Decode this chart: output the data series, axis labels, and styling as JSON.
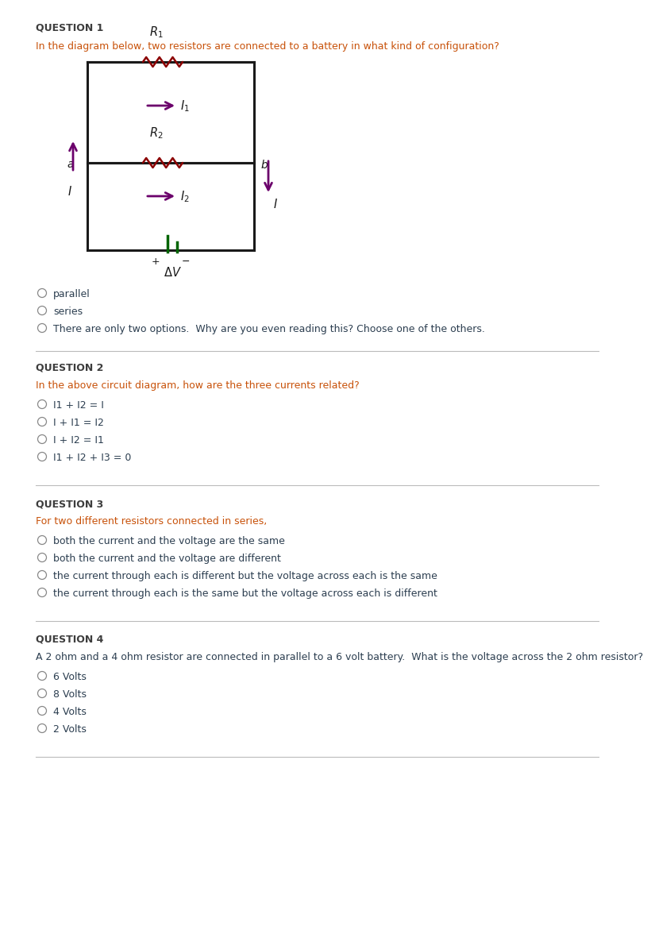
{
  "bg_color": "#ffffff",
  "question_header_color": "#3d3d3d",
  "q1_question_color": "#c8520a",
  "q2_question_color": "#c8520a",
  "q3_question_color": "#c8520a",
  "q4_question_color": "#2c3e50",
  "option_text_color": "#2c3e50",
  "circuit_color": "#1a1a1a",
  "resistor_color": "#8b0000",
  "arrow_color": "#6b006b",
  "battery_color": "#006400",
  "label_color": "#1a1a1a",
  "separator_color": "#bbbbbb",
  "q1_header": "QUESTION 1",
  "q1_text": "In the diagram below, two resistors are connected to a battery in what kind of configuration?",
  "q1_options": [
    "parallel",
    "series",
    "There are only two options.  Why are you even reading this? Choose one of the others."
  ],
  "q2_header": "QUESTION 2",
  "q2_text": "In the above circuit diagram, how are the three currents related?",
  "q2_options": [
    "I1 + I2 = I",
    "I + I1 = I2",
    "I + I2 = I1",
    "I1 + I2 + I3 = 0"
  ],
  "q3_header": "QUESTION 3",
  "q3_text": "For two different resistors connected in series,",
  "q3_options": [
    "both the current and the voltage are the same",
    "both the current and the voltage are different",
    "the current through each is different but the voltage across each is the same",
    "the current through each is the same but the voltage across each is different"
  ],
  "q4_header": "QUESTION 4",
  "q4_text": "A 2 ohm and a 4 ohm resistor are connected in parallel to a 6 volt battery.  What is the voltage across the 2 ohm resistor?",
  "q4_options": [
    "6 Volts",
    "8 Volts",
    "4 Volts",
    "2 Volts"
  ]
}
